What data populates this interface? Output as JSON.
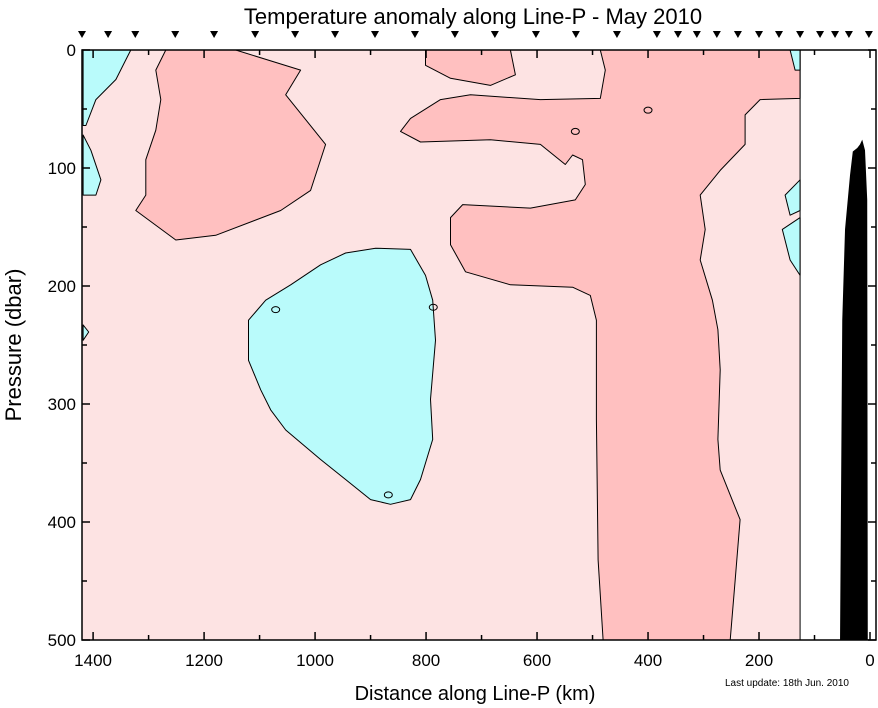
{
  "chart_data": {
    "type": "contour",
    "title": "Temperature anomaly along Line-P - May 2010",
    "xlabel": "Distance along Line-P (km)",
    "ylabel": "Pressure (dbar)",
    "xlim": [
      1420,
      0
    ],
    "ylim": [
      0,
      500
    ],
    "data_limit_km": 126,
    "xticks": [
      1400,
      1200,
      1000,
      800,
      600,
      400,
      200,
      0
    ],
    "yticks": [
      0,
      100,
      200,
      300,
      400,
      500
    ],
    "footnote": "Last update: 18th Jun. 2010",
    "colors": {
      "background_positive": "#fde3e3",
      "positive": "#ffc0c0",
      "negative": "#b9fbfb",
      "bathymetry": "#000000"
    },
    "stations_km": [
      1420,
      1373,
      1324,
      1252,
      1182,
      1108,
      1036,
      964,
      892,
      820,
      748,
      676,
      602,
      530,
      456,
      384,
      346,
      312,
      276,
      238,
      200,
      164,
      126,
      90,
      63,
      38,
      2
    ],
    "regions": [
      {
        "sign": "positive",
        "points": [
          [
            486,
            0
          ],
          [
            126,
            0
          ],
          [
            126,
            41
          ],
          [
            198,
            42
          ],
          [
            225,
            55
          ],
          [
            225,
            80
          ],
          [
            270,
            102
          ],
          [
            306,
            123
          ],
          [
            297,
            152
          ],
          [
            306,
            178
          ],
          [
            284,
            212
          ],
          [
            274,
            237
          ],
          [
            270,
            271
          ],
          [
            274,
            330
          ],
          [
            270,
            356
          ],
          [
            234,
            398
          ],
          [
            243,
            449
          ],
          [
            252,
            500
          ],
          [
            481,
            500
          ],
          [
            490,
            432
          ],
          [
            493,
            313
          ],
          [
            493,
            229
          ],
          [
            504,
            208
          ],
          [
            536,
            201
          ],
          [
            648,
            199
          ],
          [
            729,
            188
          ],
          [
            756,
            165
          ],
          [
            756,
            142
          ],
          [
            734,
            131
          ],
          [
            612,
            134
          ],
          [
            531,
            127
          ],
          [
            513,
            114
          ],
          [
            518,
            93
          ],
          [
            536,
            89
          ],
          [
            549,
            97
          ],
          [
            594,
            80
          ],
          [
            684,
            76
          ],
          [
            810,
            78
          ],
          [
            846,
            69
          ],
          [
            828,
            58
          ],
          [
            774,
            42
          ],
          [
            720,
            38
          ],
          [
            594,
            42
          ],
          [
            486,
            41
          ],
          [
            477,
            17
          ]
        ]
      },
      {
        "sign": "positive",
        "points": [
          [
            1269,
            0
          ],
          [
            1143,
            0
          ],
          [
            1026,
            17
          ],
          [
            1053,
            38
          ],
          [
            981,
            80
          ],
          [
            1008,
            119
          ],
          [
            1062,
            136
          ],
          [
            1179,
            157
          ],
          [
            1251,
            161
          ],
          [
            1323,
            136
          ],
          [
            1305,
            123
          ],
          [
            1305,
            93
          ],
          [
            1287,
            68
          ],
          [
            1278,
            42
          ],
          [
            1287,
            17
          ]
        ]
      },
      {
        "sign": "positive",
        "points": [
          [
            801,
            0
          ],
          [
            648,
            0
          ],
          [
            639,
            21
          ],
          [
            684,
            30
          ],
          [
            756,
            24
          ],
          [
            801,
            13
          ]
        ]
      },
      {
        "sign": "negative",
        "points": [
          [
            891,
            168
          ],
          [
            828,
            169
          ],
          [
            801,
            191
          ],
          [
            788,
            212
          ],
          [
            783,
            246
          ],
          [
            792,
            296
          ],
          [
            788,
            330
          ],
          [
            810,
            364
          ],
          [
            828,
            381
          ],
          [
            864,
            385
          ],
          [
            900,
            381
          ],
          [
            945,
            364
          ],
          [
            990,
            347
          ],
          [
            1053,
            322
          ],
          [
            1080,
            305
          ],
          [
            1098,
            288
          ],
          [
            1120,
            263
          ],
          [
            1120,
            229
          ],
          [
            1089,
            212
          ],
          [
            1044,
            199
          ],
          [
            990,
            182
          ],
          [
            945,
            172
          ]
        ]
      },
      {
        "sign": "negative",
        "points": [
          [
            1418,
            0
          ],
          [
            1332,
            0
          ],
          [
            1359,
            25
          ],
          [
            1395,
            42
          ],
          [
            1413,
            64
          ],
          [
            1418,
            64
          ]
        ]
      },
      {
        "sign": "negative",
        "points": [
          [
            1418,
            72
          ],
          [
            1404,
            85
          ],
          [
            1386,
            110
          ],
          [
            1395,
            123
          ],
          [
            1418,
            123
          ]
        ]
      },
      {
        "sign": "negative",
        "points": [
          [
            1418,
            233
          ],
          [
            1408,
            239
          ],
          [
            1418,
            246
          ]
        ]
      },
      {
        "sign": "negative",
        "points": [
          [
            126,
            0
          ],
          [
            144,
            0
          ],
          [
            135,
            17
          ],
          [
            126,
            17
          ]
        ]
      },
      {
        "sign": "negative",
        "points": [
          [
            126,
            110
          ],
          [
            153,
            123
          ],
          [
            144,
            140
          ],
          [
            126,
            136
          ]
        ]
      },
      {
        "sign": "negative",
        "points": [
          [
            126,
            142
          ],
          [
            158,
            152
          ],
          [
            144,
            178
          ],
          [
            126,
            191
          ]
        ]
      }
    ],
    "small_loops": [
      [
        400,
        51
      ],
      [
        531,
        69
      ],
      [
        1071,
        220
      ],
      [
        787,
        218
      ],
      [
        868,
        377
      ]
    ],
    "bathymetry": [
      [
        54,
        500
      ],
      [
        50,
        229
      ],
      [
        45,
        152
      ],
      [
        36,
        106
      ],
      [
        31,
        86
      ],
      [
        23,
        83
      ],
      [
        18,
        80
      ],
      [
        14,
        76
      ],
      [
        9,
        85
      ],
      [
        5,
        127
      ],
      [
        4,
        500
      ]
    ]
  }
}
